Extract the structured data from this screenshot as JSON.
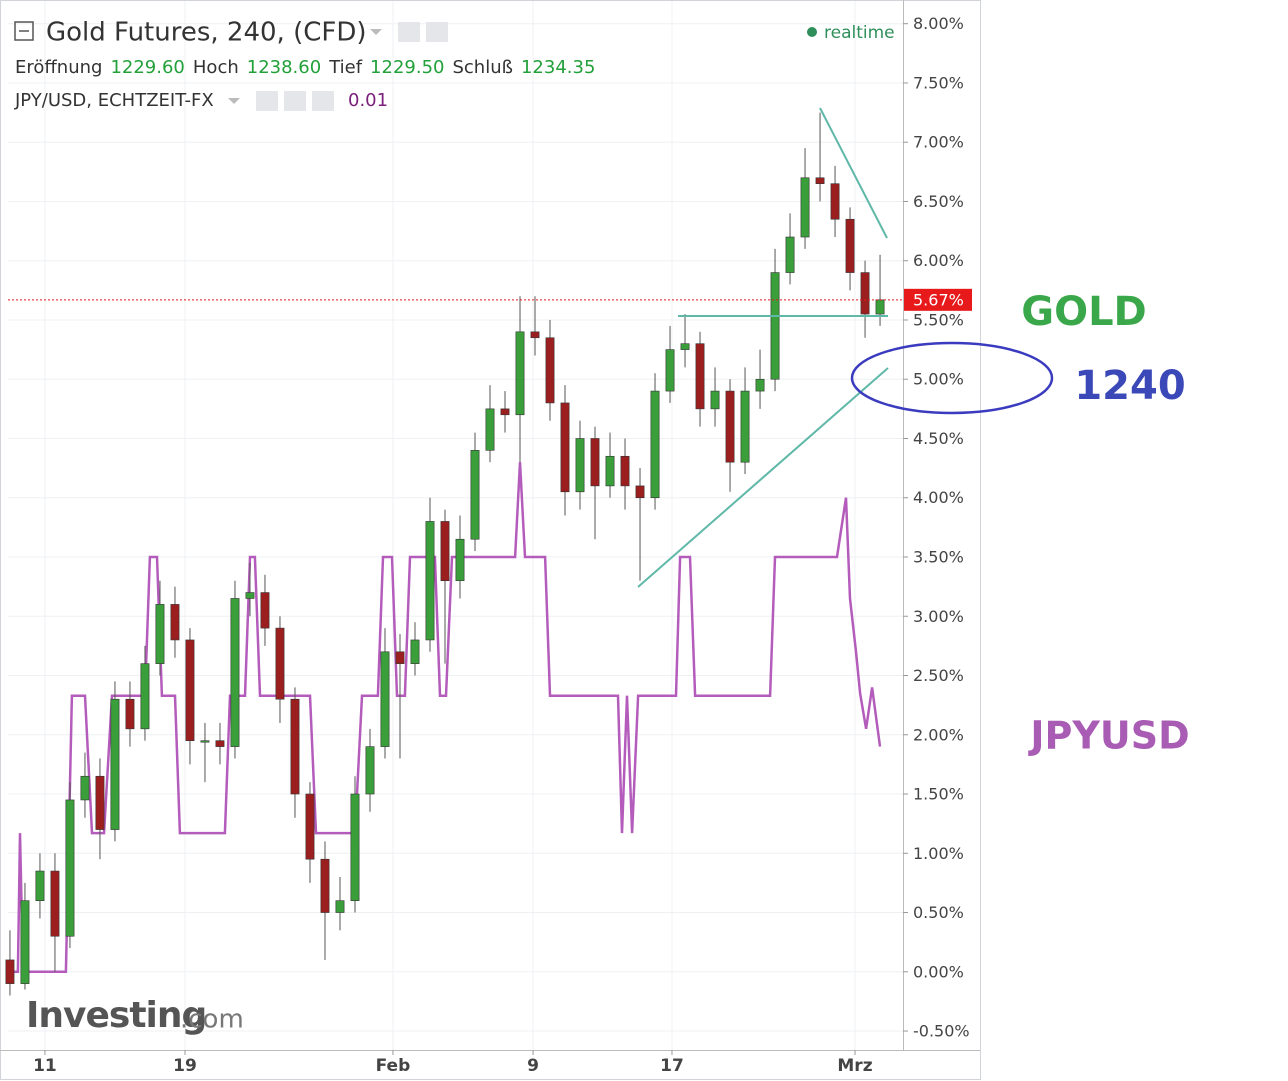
{
  "chart_data": {
    "type": "candlestick",
    "title": "Gold Futures, 240, (CFD)",
    "status": "realtime",
    "ohlc_legend": [
      {
        "name": "Eröffnung",
        "value": "1229.60"
      },
      {
        "name": "Hoch",
        "value": "1238.60"
      },
      {
        "name": "Tief",
        "value": "1229.50"
      },
      {
        "name": "Schluß",
        "value": "1234.35"
      }
    ],
    "up_color": "#3a9e3a",
    "down_color": "#9c1f1f",
    "x": [
      0,
      1,
      2,
      3,
      4,
      5,
      6,
      7,
      8,
      9,
      10,
      11,
      12,
      13,
      14,
      15,
      16,
      17,
      18,
      19,
      20,
      21,
      22,
      23,
      24,
      25,
      26,
      27,
      28,
      29,
      30,
      31,
      32,
      33,
      34,
      35,
      36,
      37,
      38,
      39,
      40,
      41,
      42,
      43,
      44,
      45,
      46,
      47,
      48,
      49,
      50,
      51,
      52,
      53,
      54,
      55,
      56,
      57,
      58
    ],
    "open": [
      0.1,
      -0.1,
      0.6,
      0.85,
      0.3,
      1.45,
      1.65,
      1.2,
      2.3,
      2.05,
      2.6,
      3.1,
      2.8,
      1.95,
      1.95,
      1.9,
      3.15,
      3.2,
      2.9,
      2.3,
      1.5,
      0.95,
      0.5,
      0.6,
      1.5,
      1.9,
      2.7,
      2.6,
      2.8,
      3.8,
      3.3,
      3.65,
      4.4,
      4.75,
      4.7,
      5.4,
      5.35,
      4.8,
      4.05,
      4.5,
      4.1,
      4.35,
      4.1,
      4.0,
      4.9,
      5.25,
      5.3,
      4.75,
      4.9,
      4.3,
      4.9,
      5.0,
      5.9,
      6.2,
      6.7,
      6.65,
      6.35,
      5.9,
      5.55
    ],
    "high": [
      0.35,
      0.75,
      1.0,
      1.0,
      1.6,
      1.85,
      1.8,
      2.45,
      2.45,
      2.75,
      3.3,
      3.25,
      2.9,
      2.1,
      2.1,
      3.3,
      3.45,
      3.35,
      3.0,
      2.4,
      1.6,
      1.1,
      0.8,
      1.65,
      2.05,
      2.9,
      2.85,
      2.95,
      4.0,
      3.9,
      3.85,
      4.55,
      4.95,
      4.9,
      5.7,
      5.7,
      5.5,
      4.95,
      4.65,
      4.6,
      4.55,
      4.5,
      4.25,
      5.05,
      5.45,
      5.55,
      5.4,
      5.1,
      5.0,
      5.1,
      5.25,
      6.1,
      6.4,
      6.95,
      7.25,
      6.8,
      6.45,
      6.0,
      6.05
    ],
    "low": [
      -0.2,
      -0.15,
      0.45,
      0.0,
      0.2,
      1.3,
      0.95,
      1.1,
      1.9,
      1.95,
      2.5,
      2.65,
      1.75,
      1.6,
      1.75,
      1.8,
      3.0,
      2.75,
      2.1,
      1.3,
      0.75,
      0.1,
      0.35,
      0.5,
      1.35,
      1.8,
      1.8,
      2.5,
      2.7,
      2.6,
      3.15,
      3.55,
      4.3,
      4.55,
      4.3,
      5.2,
      4.65,
      3.85,
      3.9,
      3.65,
      4.0,
      3.9,
      3.3,
      3.9,
      4.8,
      5.1,
      4.6,
      4.6,
      4.05,
      4.2,
      4.75,
      4.9,
      5.8,
      6.1,
      6.5,
      6.2,
      5.75,
      5.35,
      5.45
    ],
    "close": [
      -0.1,
      0.6,
      0.85,
      0.3,
      1.45,
      1.65,
      1.2,
      2.3,
      2.05,
      2.6,
      3.1,
      2.8,
      1.95,
      1.95,
      1.9,
      3.15,
      3.2,
      2.9,
      2.3,
      1.5,
      0.95,
      0.5,
      0.6,
      1.5,
      1.9,
      2.7,
      2.6,
      2.8,
      3.8,
      3.3,
      3.65,
      4.4,
      4.75,
      4.7,
      5.4,
      5.35,
      4.8,
      4.05,
      4.5,
      4.1,
      4.35,
      4.1,
      4.0,
      4.9,
      5.25,
      5.3,
      4.75,
      4.9,
      4.3,
      4.9,
      5.0,
      5.9,
      6.2,
      6.7,
      6.65,
      6.35,
      5.9,
      5.55,
      5.67
    ],
    "last": {
      "value": 5.67,
      "label": "5.67%",
      "color": "#e8191b"
    },
    "overlay": {
      "name": "JPY/USD, ECHTZEIT-FX",
      "value": "0.01",
      "color": "#b45cbb",
      "x": [
        -0.13,
        0.53,
        0.67,
        0.87,
        3.73,
        4.13,
        5.0,
        5.47,
        6.27,
        6.8,
        9.0,
        9.33,
        9.8,
        10.13,
        11.0,
        11.33,
        14.33,
        14.67,
        15.67,
        16.0,
        16.33,
        16.67,
        19.67,
        20.0,
        20.4,
        23.0,
        23.47,
        24.53,
        24.87,
        25.47,
        25.8,
        26.33,
        26.67,
        28.33,
        28.67,
        29.07,
        29.47,
        33.67,
        34.0,
        34.33,
        35.67,
        36.0,
        40.53,
        40.8,
        41.13,
        41.47,
        41.87,
        44.4,
        44.67,
        45.33,
        45.67,
        50.67,
        51.0,
        55.13,
        55.73,
        56.0,
        56.4,
        56.67,
        57.07,
        57.47,
        58.0
      ],
      "values": [
        0,
        0,
        1.17,
        0,
        0,
        2.33,
        2.33,
        1.17,
        1.17,
        2.33,
        2.33,
        3.5,
        3.5,
        2.33,
        2.33,
        1.17,
        1.17,
        2.33,
        2.33,
        3.5,
        3.5,
        2.33,
        2.33,
        2.33,
        1.17,
        1.17,
        2.33,
        2.33,
        3.5,
        3.5,
        2.33,
        2.33,
        3.5,
        3.5,
        2.33,
        2.33,
        3.5,
        3.5,
        4.3,
        3.5,
        3.5,
        2.33,
        2.33,
        1.17,
        2.33,
        1.17,
        2.33,
        2.33,
        3.5,
        3.5,
        2.33,
        2.33,
        3.5,
        3.5,
        4.0,
        3.15,
        2.7,
        2.35,
        2.05,
        2.4,
        1.9
      ]
    },
    "xlim": [
      -0.13,
      59.53
    ],
    "ylim": [
      -0.66,
      8.2
    ],
    "xticks": [
      {
        "value": 2.33,
        "label": "11"
      },
      {
        "value": 11.67,
        "label": "19"
      },
      {
        "value": 25.53,
        "label": "Feb"
      },
      {
        "value": 34.87,
        "label": "9"
      },
      {
        "value": 44.13,
        "label": "17"
      },
      {
        "value": 56.33,
        "label": "Mrz"
      }
    ],
    "yticks": [
      {
        "value": 8.0,
        "label": "8.00%"
      },
      {
        "value": 7.5,
        "label": "7.50%"
      },
      {
        "value": 7.0,
        "label": "7.00%"
      },
      {
        "value": 6.5,
        "label": "6.50%"
      },
      {
        "value": 6.0,
        "label": "6.00%"
      },
      {
        "value": 5.5,
        "label": "5.50%"
      },
      {
        "value": 5.0,
        "label": "5.00%"
      },
      {
        "value": 4.5,
        "label": "4.50%"
      },
      {
        "value": 4.0,
        "label": "4.00%"
      },
      {
        "value": 3.5,
        "label": "3.50%"
      },
      {
        "value": 3.0,
        "label": "3.00%"
      },
      {
        "value": 2.5,
        "label": "2.50%"
      },
      {
        "value": 2.0,
        "label": "2.00%"
      },
      {
        "value": 1.5,
        "label": "1.50%"
      },
      {
        "value": 1.0,
        "label": "1.00%"
      },
      {
        "value": 0.5,
        "label": "0.50%"
      },
      {
        "value": 0.0,
        "label": "0.00%"
      },
      {
        "value": -0.5,
        "label": "-0.50%"
      }
    ],
    "grid": true,
    "watermark": [
      "Investing",
      ".com"
    ],
    "annotations": [
      {
        "text": "GOLD",
        "color": "#3aa84a"
      },
      {
        "text": "1240",
        "color": "#3b48b8"
      },
      {
        "text": "JPYUSD",
        "color": "#a85cb3"
      }
    ]
  }
}
